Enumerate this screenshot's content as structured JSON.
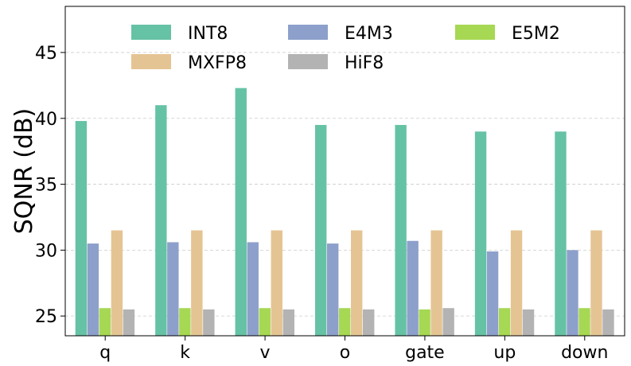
{
  "chart_data": {
    "type": "bar",
    "categories": [
      "q",
      "k",
      "v",
      "o",
      "gate",
      "up",
      "down"
    ],
    "series": [
      {
        "name": "INT8",
        "color": "#66c2a5",
        "values": [
          39.8,
          41.0,
          42.3,
          39.5,
          39.5,
          39.0,
          39.0
        ]
      },
      {
        "name": "E4M3",
        "color": "#8da0cb",
        "values": [
          30.5,
          30.6,
          30.6,
          30.5,
          30.7,
          29.9,
          30.0
        ]
      },
      {
        "name": "E5M2",
        "color": "#a6d854",
        "values": [
          25.6,
          25.6,
          25.6,
          25.6,
          25.5,
          25.6,
          25.6
        ]
      },
      {
        "name": "MXFP8",
        "color": "#e5c494",
        "values": [
          31.5,
          31.5,
          31.5,
          31.5,
          31.5,
          31.5,
          31.5
        ]
      },
      {
        "name": "HiF8",
        "color": "#b3b3b3",
        "values": [
          25.5,
          25.5,
          25.5,
          25.5,
          25.6,
          25.5,
          25.5
        ]
      }
    ],
    "xlabel": "",
    "ylabel": "SQNR (dB)",
    "ylim": [
      23.5,
      48.5
    ],
    "yticks": [
      25,
      30,
      35,
      40,
      45
    ],
    "grid": "horizontal-dashed",
    "legend": "top, 3 columns"
  }
}
